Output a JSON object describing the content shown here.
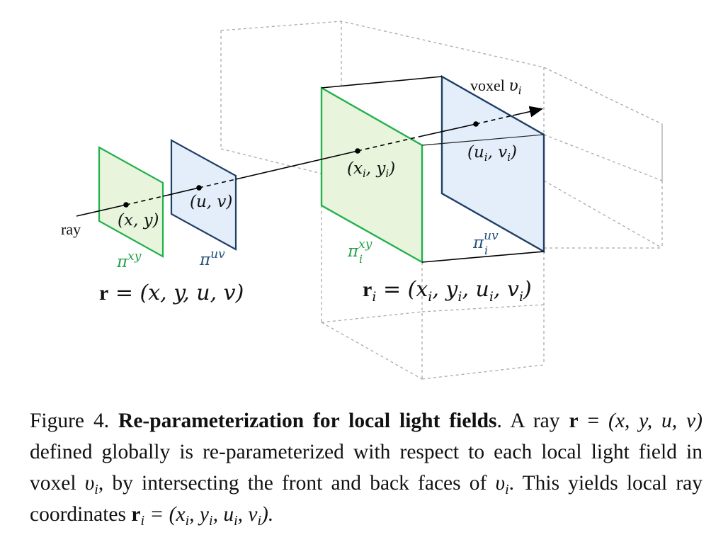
{
  "figure": {
    "colors": {
      "green_stroke": "#22b14c",
      "green_fill": "#e8f5dc",
      "blue_stroke": "#1f3f66",
      "blue_fill": "#e3eefa",
      "green_label": "#22a046",
      "blue_label": "#1f4e79",
      "voxel_edge": "#aaaaaa"
    },
    "ray_label": "ray",
    "global_front_point": "(x, y)",
    "global_back_point": "(u, v)",
    "global_front_plane_base": "π",
    "global_front_plane_sup": "xy",
    "global_back_plane_base": "π",
    "global_back_plane_sup": "uv",
    "global_ray_eq_bold": "r",
    "global_ray_eq_rest": " = (x, y, u, v)",
    "local_front_point_base": "(x",
    "local_front_point_sub1": "i",
    "local_front_point_mid": ", y",
    "local_front_point_sub2": "i",
    "local_front_point_end": ")",
    "local_back_point_base": "(u",
    "local_back_point_sub1": "i",
    "local_back_point_mid": ", v",
    "local_back_point_sub2": "i",
    "local_back_point_end": ")",
    "local_front_plane_base": "π",
    "local_front_plane_sup": "xy",
    "local_front_plane_sub": "i",
    "local_back_plane_base": "π",
    "local_back_plane_sup": "uv",
    "local_back_plane_sub": "i",
    "voxel_label_text": "voxel ",
    "voxel_label_sym": "υ",
    "voxel_label_sub": "i",
    "local_ray_eq_bold": "r",
    "local_ray_eq_sub": "i",
    "local_ray_eq_rest": " = (x",
    "local_ray_eq_parts": [
      "i",
      ", y",
      "i",
      ", u",
      "i",
      ", v",
      "i",
      ")"
    ]
  },
  "caption": {
    "prefix": "Figure 4. ",
    "title": "Re-parameterization for local light fields",
    "sentence1_a": ". A ray ",
    "sentence1_r": "r",
    "sentence1_b": " = ",
    "sentence1_tuple": "(x, y, u, v)",
    "sentence1_c": " defined globally is re-parameterized with respect to each local light field in voxel ",
    "voxel_sym": "υ",
    "voxel_sub": "i",
    "sentence1_d": ", by intersecting the front and back faces of ",
    "sentence1_e": ". This yields local ray coordinates ",
    "ri_bold": "r",
    "ri_sub": "i",
    "ri_eq": " = (x",
    "ri_t1": ", y",
    "ri_t2": ", u",
    "ri_t3": ", v",
    "ri_end": ")."
  }
}
